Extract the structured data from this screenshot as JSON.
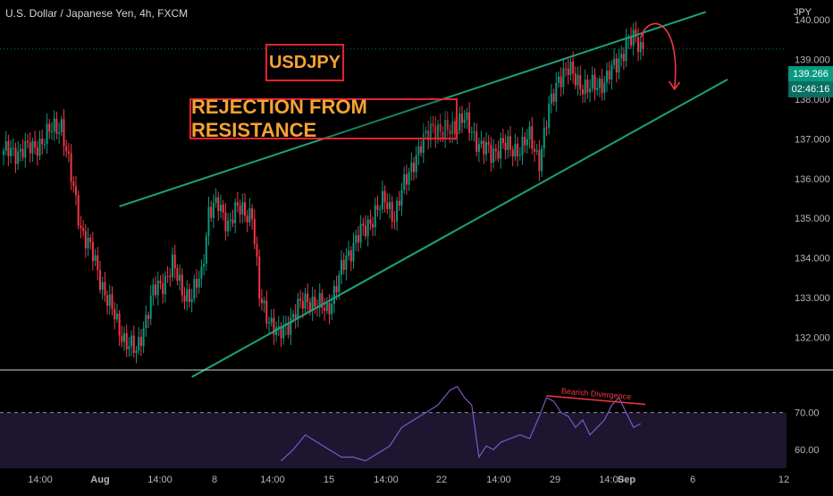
{
  "header": {
    "symbol": "U.S. Dollar / Japanese Yen, 4h, FXCM",
    "currency": "JPY"
  },
  "price_tags": {
    "last_price": "139.266",
    "countdown": "02:46:16"
  },
  "annotations": {
    "label_1": "USDJPY",
    "label_2": "REJECTION FROM RESISTANCE",
    "rsi_note": "Bearish Divergence"
  },
  "colors": {
    "up": "#089981",
    "down": "#f23645",
    "trendline": "#1ba37e",
    "arrow": "#f23645",
    "label_border": "#e3232d",
    "label_text": "#f7a233",
    "rsi_line": "#7e57c2",
    "rsi_band": "#1c1630"
  },
  "chart_data": [
    {
      "type": "candlestick",
      "title": "U.S. Dollar / Japanese Yen, 4h, FXCM",
      "ylabel": "JPY",
      "y_ticks": [
        132.0,
        133.0,
        134.0,
        135.0,
        136.0,
        137.0,
        138.0,
        139.0,
        140.0
      ],
      "x_tick_labels": [
        "14:00",
        "Aug",
        "14:00",
        "8",
        "14:00",
        "15",
        "14:00",
        "22",
        "14:00",
        "29",
        "14:00",
        "Sep",
        "6",
        "12"
      ],
      "ylim": [
        131.2,
        140.5
      ],
      "last_price": 139.266,
      "close_path": [
        [
          0,
          136.7
        ],
        [
          4,
          136.6
        ],
        [
          8,
          136.8
        ],
        [
          12,
          136.7
        ],
        [
          16,
          137.0
        ],
        [
          20,
          137.2
        ],
        [
          24,
          137.4
        ],
        [
          28,
          136.0
        ],
        [
          32,
          134.8
        ],
        [
          36,
          134.2
        ],
        [
          40,
          133.5
        ],
        [
          44,
          132.8
        ],
        [
          48,
          132.2
        ],
        [
          52,
          131.8
        ],
        [
          55,
          131.6
        ],
        [
          58,
          132.3
        ],
        [
          62,
          133.1
        ],
        [
          66,
          133.4
        ],
        [
          70,
          133.8
        ],
        [
          74,
          133.2
        ],
        [
          78,
          133.0
        ],
        [
          82,
          133.6
        ],
        [
          85,
          135.2
        ],
        [
          89,
          135.3
        ],
        [
          93,
          134.9
        ],
        [
          97,
          135.2
        ],
        [
          100,
          135.2
        ],
        [
          103,
          135.1
        ],
        [
          106,
          133.0
        ],
        [
          110,
          132.5
        ],
        [
          114,
          132.0
        ],
        [
          118,
          132.4
        ],
        [
          122,
          132.7
        ],
        [
          126,
          133.0
        ],
        [
          130,
          132.8
        ],
        [
          134,
          132.7
        ],
        [
          138,
          133.3
        ],
        [
          142,
          134.0
        ],
        [
          146,
          134.5
        ],
        [
          150,
          134.7
        ],
        [
          154,
          135.2
        ],
        [
          158,
          135.4
        ],
        [
          162,
          135.1
        ],
        [
          166,
          135.8
        ],
        [
          170,
          136.5
        ],
        [
          174,
          136.9
        ],
        [
          178,
          137.4
        ],
        [
          182,
          137.1
        ],
        [
          186,
          137.3
        ],
        [
          190,
          137.5
        ],
        [
          194,
          137.2
        ],
        [
          198,
          136.8
        ],
        [
          202,
          136.6
        ],
        [
          206,
          136.9
        ],
        [
          210,
          136.7
        ],
        [
          214,
          136.8
        ],
        [
          218,
          137.0
        ],
        [
          222,
          136.5
        ],
        [
          226,
          137.7
        ],
        [
          230,
          138.6
        ],
        [
          234,
          138.7
        ],
        [
          238,
          138.5
        ],
        [
          242,
          138.2
        ],
        [
          246,
          138.4
        ],
        [
          250,
          138.5
        ],
        [
          254,
          138.9
        ],
        [
          258,
          139.4
        ],
        [
          262,
          139.5
        ],
        [
          265,
          139.27
        ]
      ],
      "resistance_line": {
        "from": [
          48,
          135.3
        ],
        "to": [
          291,
          140.2
        ]
      },
      "support_line": {
        "from": [
          78,
          131.0
        ],
        "to": [
          300,
          138.5
        ]
      }
    },
    {
      "type": "line",
      "title": "RSI",
      "y_ticks": [
        60.0,
        70.0
      ],
      "ylim": [
        55,
        80
      ],
      "dashed_level": 70,
      "values": [
        [
          115,
          57
        ],
        [
          120,
          60
        ],
        [
          125,
          64
        ],
        [
          130,
          62
        ],
        [
          135,
          60
        ],
        [
          140,
          58
        ],
        [
          145,
          58
        ],
        [
          150,
          57
        ],
        [
          160,
          61
        ],
        [
          165,
          66
        ],
        [
          170,
          68
        ],
        [
          175,
          70
        ],
        [
          180,
          72
        ],
        [
          185,
          76
        ],
        [
          188,
          77
        ],
        [
          191,
          74
        ],
        [
          194,
          72
        ],
        [
          197,
          58
        ],
        [
          200,
          61
        ],
        [
          203,
          60
        ],
        [
          206,
          62
        ],
        [
          210,
          63
        ],
        [
          214,
          64
        ],
        [
          218,
          63
        ],
        [
          222,
          69
        ],
        [
          225,
          74
        ],
        [
          228,
          73
        ],
        [
          231,
          70
        ],
        [
          234,
          69
        ],
        [
          237,
          66
        ],
        [
          240,
          68
        ],
        [
          243,
          64
        ],
        [
          246,
          66
        ],
        [
          249,
          68
        ],
        [
          252,
          72
        ],
        [
          255,
          74
        ],
        [
          258,
          70
        ],
        [
          261,
          66
        ],
        [
          264,
          67
        ]
      ],
      "divergence_line": {
        "from": [
          225,
          74.5
        ],
        "to": [
          266,
          72.2
        ]
      }
    }
  ]
}
